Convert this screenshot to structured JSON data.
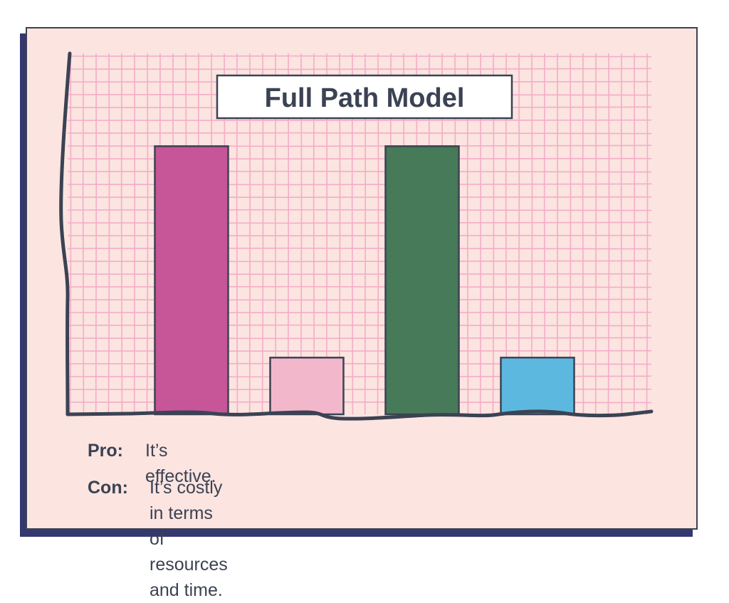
{
  "colors": {
    "background": "#fce4e0",
    "grid": "#f3adc7",
    "axis": "#3b4253",
    "shadow": "#34386e"
  },
  "chart_data": {
    "type": "bar",
    "title": "Full Path Model",
    "xlabel": "",
    "ylabel": "",
    "categories": [
      "",
      "",
      "",
      ""
    ],
    "values": [
      5.2,
      1.1,
      5.2,
      1.1
    ],
    "bar_colors": [
      "#c65697",
      "#f2b7cb",
      "#477a58",
      "#5db8e0"
    ],
    "ylim": [
      0,
      7
    ],
    "grid": true,
    "legend": "none"
  },
  "notes": {
    "pro_label": "Pro:",
    "pro_text": "It’s effective.",
    "con_label": "Con:",
    "con_text": "It’s costly in terms of resources and time."
  }
}
